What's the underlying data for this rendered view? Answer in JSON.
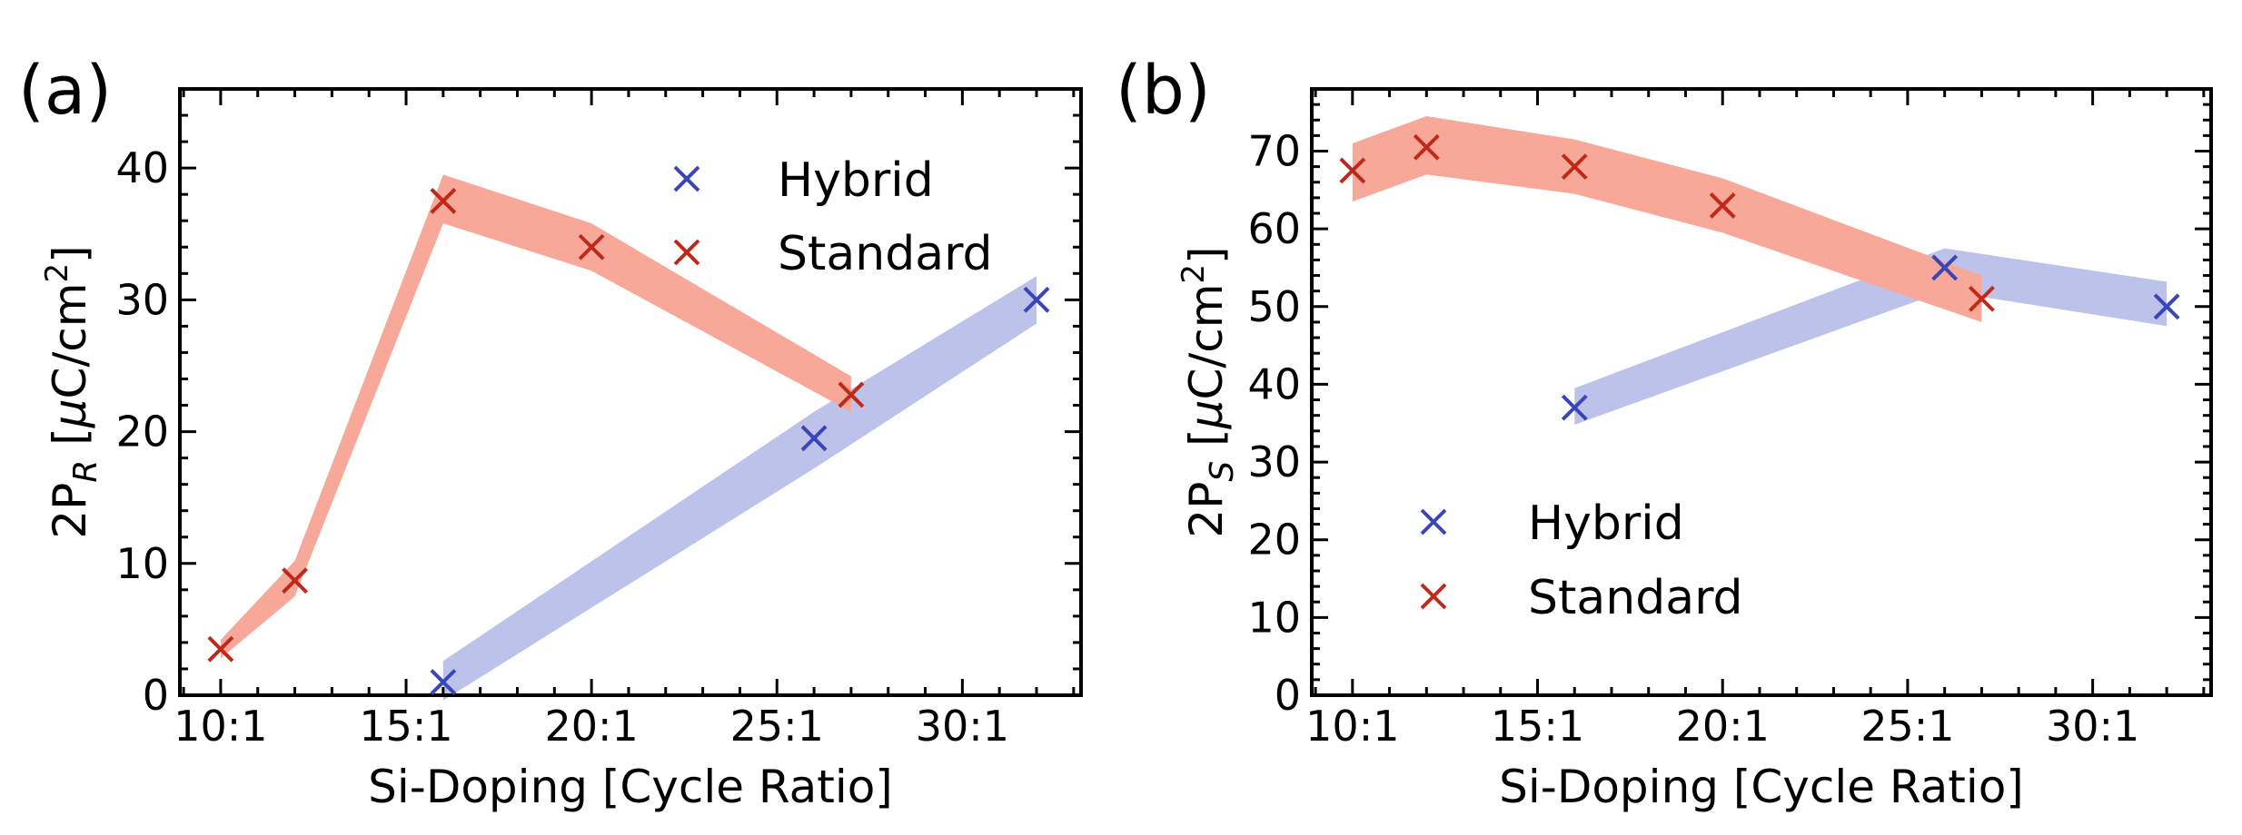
{
  "chart_data": [
    {
      "type": "line",
      "panel_label": "(a)",
      "xlabel": "Si-Doping [Cycle Ratio]",
      "ylabel_main": "2P",
      "ylabel_sub": "R",
      "ylabel_unit_pre": " [",
      "ylabel_mu": "μ",
      "ylabel_unit_mid": "C/cm",
      "ylabel_sup": "2",
      "ylabel_unit_post": "]",
      "xlim": [
        8.9,
        33.2
      ],
      "ylim": [
        0,
        46
      ],
      "xticks": [
        10,
        15,
        20,
        25,
        30
      ],
      "xtick_labels": [
        "10:1",
        "15:1",
        "20:1",
        "25:1",
        "30:1"
      ],
      "yticks": [
        0,
        10,
        20,
        30,
        40
      ],
      "ytick_labels": [
        "0",
        "10",
        "20",
        "30",
        "40"
      ],
      "legend_position": "top-right",
      "series": [
        {
          "name": "Hybrid",
          "color": "#3a46b8",
          "band_color": "#bcc2ea",
          "x": [
            16,
            26,
            32
          ],
          "y": [
            1,
            19.5,
            30
          ],
          "band_upper": [
            2.6,
            21.5,
            31.8
          ],
          "band_lower": [
            -0.4,
            17.2,
            28.2
          ]
        },
        {
          "name": "Standard",
          "color": "#c0281a",
          "band_color": "#f7a898",
          "x": [
            10,
            12,
            16,
            20,
            27
          ],
          "y": [
            3.5,
            8.7,
            37.5,
            34,
            22.8
          ],
          "band_upper": [
            4.2,
            10.2,
            39.5,
            35.8,
            24.2
          ],
          "band_lower": [
            2.8,
            7.5,
            35.8,
            32.2,
            21.5
          ]
        }
      ]
    },
    {
      "type": "line",
      "panel_label": "(b)",
      "xlabel": "Si-Doping [Cycle Ratio]",
      "ylabel_main": "2P",
      "ylabel_sub": "S",
      "ylabel_unit_pre": " [",
      "ylabel_mu": "μ",
      "ylabel_unit_mid": "C/cm",
      "ylabel_sup": "2",
      "ylabel_unit_post": "]",
      "xlim": [
        8.9,
        33.2
      ],
      "ylim": [
        0,
        78
      ],
      "xticks": [
        10,
        15,
        20,
        25,
        30
      ],
      "xtick_labels": [
        "10:1",
        "15:1",
        "20:1",
        "25:1",
        "30:1"
      ],
      "yticks": [
        0,
        10,
        20,
        30,
        40,
        50,
        60,
        70
      ],
      "ytick_labels": [
        "0",
        "10",
        "20",
        "30",
        "40",
        "50",
        "60",
        "70"
      ],
      "legend_position": "lower-left",
      "series": [
        {
          "name": "Hybrid",
          "color": "#3a46b8",
          "band_color": "#bcc2ea",
          "x": [
            16,
            26,
            32
          ],
          "y": [
            37,
            55,
            50
          ],
          "band_upper": [
            39.5,
            57.5,
            53.2
          ],
          "band_lower": [
            34.8,
            52,
            47.5
          ]
        },
        {
          "name": "Standard",
          "color": "#c0281a",
          "band_color": "#f7a898",
          "x": [
            10,
            12,
            16,
            20,
            27
          ],
          "y": [
            67.5,
            70.5,
            68,
            63,
            51
          ],
          "band_upper": [
            71,
            74.5,
            71.5,
            66.5,
            54
          ],
          "band_lower": [
            63.5,
            67,
            64.5,
            59.5,
            48
          ]
        }
      ]
    }
  ]
}
